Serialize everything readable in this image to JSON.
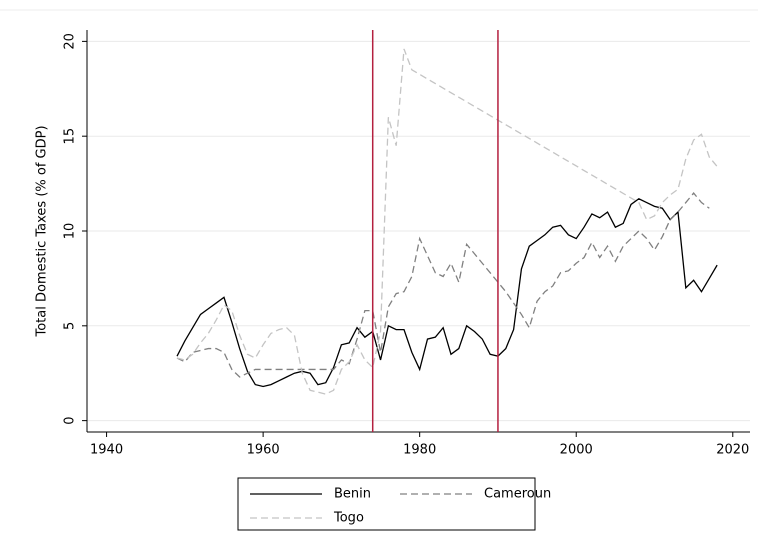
{
  "chart_data": {
    "type": "line",
    "y_label": "Total Domestic Taxes (% of GDP)",
    "xlim": [
      1937.5,
      2022.2
    ],
    "ylim": [
      -0.6,
      20.6
    ],
    "xticks": [
      1940,
      1960,
      1980,
      2000,
      2020
    ],
    "yticks": [
      0,
      5,
      10,
      15,
      20
    ],
    "grid": true,
    "xlines": [
      1974,
      1990
    ],
    "xline_color": "#b4203f",
    "legend": "bottom",
    "series": [
      {
        "name": "Benin",
        "color": "#000000",
        "line_style": "solid",
        "x": [
          1949,
          1950,
          1951,
          1952,
          1953,
          1954,
          1955,
          1956,
          1957,
          1958,
          1959,
          1960,
          1961,
          1962,
          1963,
          1964,
          1965,
          1966,
          1967,
          1968,
          1969,
          1970,
          1971,
          1972,
          1973,
          1974,
          1975,
          1976,
          1977,
          1978,
          1979,
          1980,
          1981,
          1982,
          1983,
          1984,
          1985,
          1986,
          1987,
          1988,
          1989,
          1990,
          1991,
          1992,
          1993,
          1994,
          1995,
          1996,
          1997,
          1998,
          1999,
          2000,
          2001,
          2002,
          2003,
          2004,
          2005,
          2006,
          2007,
          2008,
          2009,
          2010,
          2011,
          2012,
          2013,
          2014,
          2015,
          2016,
          2017,
          2018
        ],
        "values": [
          3.4,
          4.2,
          4.9,
          5.6,
          5.9,
          6.2,
          6.5,
          5.2,
          3.8,
          2.6,
          1.9,
          1.8,
          1.9,
          2.1,
          2.3,
          2.5,
          2.6,
          2.5,
          1.9,
          2.0,
          2.8,
          4.0,
          4.1,
          4.9,
          4.4,
          4.7,
          3.2,
          5.0,
          4.8,
          4.8,
          3.6,
          2.7,
          4.3,
          4.4,
          4.9,
          3.5,
          3.8,
          5.0,
          4.7,
          4.3,
          3.5,
          3.4,
          3.8,
          4.8,
          8.0,
          9.2,
          9.5,
          9.8,
          10.2,
          10.3,
          9.8,
          9.6,
          10.2,
          10.9,
          10.7,
          11.0,
          10.2,
          10.4,
          11.4,
          11.7,
          11.5,
          11.3,
          11.2,
          10.6,
          11.0,
          7.0,
          7.4,
          6.8,
          7.5,
          8.2
        ]
      },
      {
        "name": "Cameroun",
        "color": "#808080",
        "line_style": "dashed",
        "x": [
          1949,
          1950,
          1951,
          1952,
          1953,
          1954,
          1955,
          1956,
          1957,
          1958,
          1959,
          1960,
          1961,
          1962,
          1963,
          1964,
          1965,
          1966,
          1967,
          1968,
          1969,
          1970,
          1971,
          1972,
          1973,
          1974,
          1975,
          1976,
          1977,
          1978,
          1979,
          1980,
          1981,
          1982,
          1983,
          1984,
          1985,
          1986,
          1987,
          1988,
          1989,
          1990,
          1991,
          1992,
          1993,
          1994,
          1995,
          1996,
          1997,
          1998,
          1999,
          2000,
          2001,
          2002,
          2003,
          2004,
          2005,
          2006,
          2007,
          2008,
          2009,
          2010,
          2011,
          2012,
          2013,
          2014,
          2015,
          2016,
          2017
        ],
        "values": [
          3.3,
          3.1,
          3.6,
          3.7,
          3.8,
          3.8,
          3.6,
          2.7,
          2.3,
          2.5,
          2.7,
          2.7,
          2.7,
          2.7,
          2.7,
          2.7,
          2.7,
          2.7,
          2.7,
          2.7,
          2.7,
          3.2,
          3.0,
          4.3,
          5.8,
          5.8,
          3.6,
          6.0,
          6.7,
          6.8,
          7.6,
          9.6,
          8.7,
          7.8,
          7.6,
          8.3,
          7.3,
          9.3,
          8.8,
          8.3,
          7.8,
          7.3,
          6.8,
          6.2,
          5.6,
          4.9,
          6.3,
          6.8,
          7.1,
          7.8,
          7.9,
          8.3,
          8.6,
          9.4,
          8.6,
          9.2,
          8.4,
          9.2,
          9.6,
          10.0,
          9.6,
          9.0,
          9.7,
          10.6,
          11.0,
          11.5,
          12.0,
          11.5,
          11.2
        ]
      },
      {
        "name": "Togo",
        "color": "#c4c4c4",
        "line_style": "dashed",
        "x": [
          1949,
          1950,
          1951,
          1952,
          1953,
          1954,
          1955,
          1956,
          1957,
          1958,
          1959,
          1960,
          1961,
          1962,
          1963,
          1964,
          1965,
          1966,
          1967,
          1968,
          1969,
          1970,
          1971,
          1972,
          1973,
          1974,
          1975,
          1976,
          1977,
          1978,
          1979,
          2008,
          2009,
          2010,
          2011,
          2012,
          2013,
          2014,
          2015,
          2016,
          2017,
          2018
        ],
        "values": [
          3.3,
          3.2,
          3.5,
          4.1,
          4.6,
          5.3,
          6.1,
          5.8,
          4.5,
          3.5,
          3.3,
          4.0,
          4.6,
          4.8,
          4.9,
          4.5,
          2.5,
          1.6,
          1.5,
          1.4,
          1.6,
          2.7,
          3.1,
          4.0,
          3.2,
          2.8,
          4.7,
          16.0,
          14.5,
          19.6,
          18.5,
          11.5,
          10.6,
          10.8,
          11.5,
          11.9,
          12.2,
          13.8,
          14.8,
          15.1,
          13.9,
          13.4
        ]
      }
    ]
  }
}
